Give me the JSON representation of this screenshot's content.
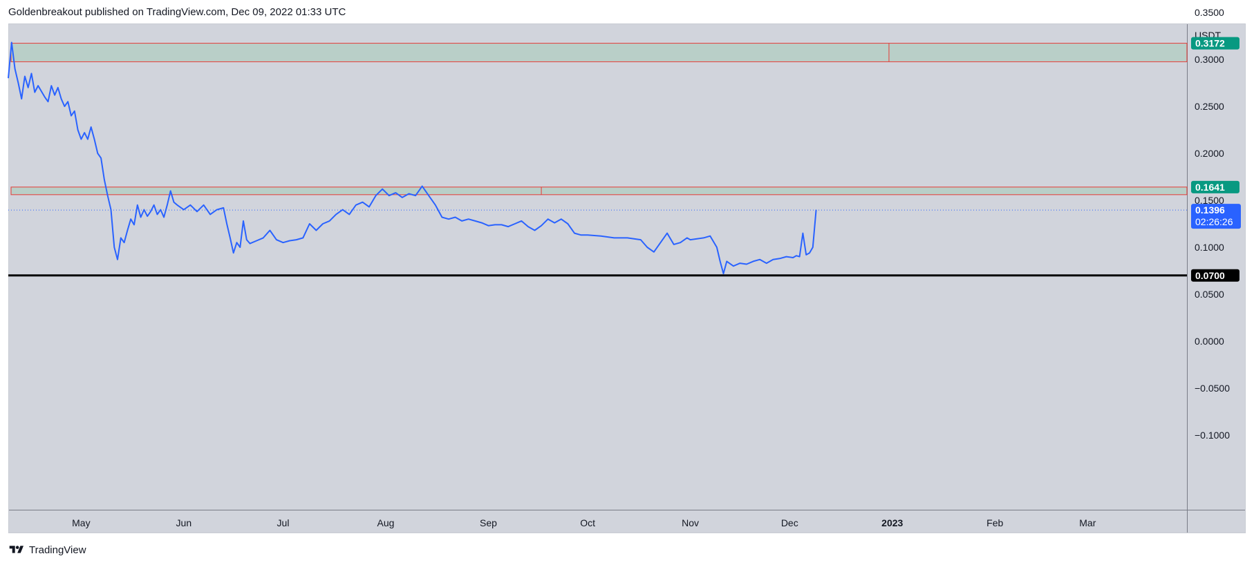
{
  "header": {
    "title": "Goldenbreakout published on TradingView.com, Dec 09, 2022 01:33 UTC"
  },
  "footer": {
    "brand": "TradingView",
    "logo_icon": "tradingview-logo-icon"
  },
  "colors": {
    "plot_bg": "#d1d4dc",
    "line": "#2962ff",
    "zone_fill": "#b9cfc8",
    "zone_border": "#e53935",
    "support_line": "#000000",
    "badge_green": "#089981",
    "badge_blue": "#2962ff",
    "badge_black": "#000000"
  },
  "chart_data": {
    "type": "line",
    "price_axis": {
      "unit": "USDT",
      "ticks": [
        0.35,
        0.3,
        0.25,
        0.2,
        0.15,
        0.1,
        0.05,
        0.0,
        -0.05,
        -0.1
      ],
      "tick_labels": [
        "0.3500",
        "0.3000",
        "0.2500",
        "0.2000",
        "0.1500",
        "0.1000",
        "0.0500",
        "0.0000",
        "−0.0500",
        "−0.1000"
      ],
      "range": [
        -0.14,
        0.37
      ]
    },
    "time_axis": {
      "range": [
        "2022-04-09",
        "2023-03-31"
      ],
      "labels": [
        {
          "date": "2022-05-01",
          "text": "May",
          "bold": false
        },
        {
          "date": "2022-06-01",
          "text": "Jun",
          "bold": false
        },
        {
          "date": "2022-07-01",
          "text": "Jul",
          "bold": false
        },
        {
          "date": "2022-08-01",
          "text": "Aug",
          "bold": false
        },
        {
          "date": "2022-09-01",
          "text": "Sep",
          "bold": false
        },
        {
          "date": "2022-10-01",
          "text": "Oct",
          "bold": false
        },
        {
          "date": "2022-11-01",
          "text": "Nov",
          "bold": false
        },
        {
          "date": "2022-12-01",
          "text": "Dec",
          "bold": false
        },
        {
          "date": "2023-01-01",
          "text": "2023",
          "bold": true
        },
        {
          "date": "2023-02-01",
          "text": "Feb",
          "bold": false
        },
        {
          "date": "2023-03-01",
          "text": "Mar",
          "bold": false
        }
      ]
    },
    "series": [
      {
        "points": [
          [
            "2022-04-09",
            0.28
          ],
          [
            "2022-04-10",
            0.318
          ],
          [
            "2022-04-11",
            0.29
          ],
          [
            "2022-04-12",
            0.275
          ],
          [
            "2022-04-13",
            0.258
          ],
          [
            "2022-04-14",
            0.282
          ],
          [
            "2022-04-15",
            0.27
          ],
          [
            "2022-04-16",
            0.285
          ],
          [
            "2022-04-17",
            0.265
          ],
          [
            "2022-04-18",
            0.272
          ],
          [
            "2022-04-20",
            0.26
          ],
          [
            "2022-04-21",
            0.255
          ],
          [
            "2022-04-22",
            0.272
          ],
          [
            "2022-04-23",
            0.262
          ],
          [
            "2022-04-24",
            0.27
          ],
          [
            "2022-04-25",
            0.258
          ],
          [
            "2022-04-26",
            0.25
          ],
          [
            "2022-04-27",
            0.255
          ],
          [
            "2022-04-28",
            0.24
          ],
          [
            "2022-04-29",
            0.245
          ],
          [
            "2022-04-30",
            0.225
          ],
          [
            "2022-05-01",
            0.215
          ],
          [
            "2022-05-02",
            0.222
          ],
          [
            "2022-05-03",
            0.215
          ],
          [
            "2022-05-04",
            0.228
          ],
          [
            "2022-05-05",
            0.215
          ],
          [
            "2022-05-06",
            0.2
          ],
          [
            "2022-05-07",
            0.195
          ],
          [
            "2022-05-08",
            0.172
          ],
          [
            "2022-05-09",
            0.155
          ],
          [
            "2022-05-10",
            0.14
          ],
          [
            "2022-05-11",
            0.1
          ],
          [
            "2022-05-12",
            0.087
          ],
          [
            "2022-05-13",
            0.11
          ],
          [
            "2022-05-14",
            0.105
          ],
          [
            "2022-05-15",
            0.118
          ],
          [
            "2022-05-16",
            0.13
          ],
          [
            "2022-05-17",
            0.124
          ],
          [
            "2022-05-18",
            0.145
          ],
          [
            "2022-05-19",
            0.132
          ],
          [
            "2022-05-20",
            0.14
          ],
          [
            "2022-05-21",
            0.133
          ],
          [
            "2022-05-22",
            0.138
          ],
          [
            "2022-05-23",
            0.145
          ],
          [
            "2022-05-24",
            0.135
          ],
          [
            "2022-05-25",
            0.14
          ],
          [
            "2022-05-26",
            0.132
          ],
          [
            "2022-05-27",
            0.145
          ],
          [
            "2022-05-28",
            0.16
          ],
          [
            "2022-05-29",
            0.148
          ],
          [
            "2022-05-30",
            0.145
          ],
          [
            "2022-06-01",
            0.14
          ],
          [
            "2022-06-03",
            0.145
          ],
          [
            "2022-06-05",
            0.138
          ],
          [
            "2022-06-07",
            0.145
          ],
          [
            "2022-06-09",
            0.135
          ],
          [
            "2022-06-11",
            0.14
          ],
          [
            "2022-06-13",
            0.142
          ],
          [
            "2022-06-14",
            0.125
          ],
          [
            "2022-06-15",
            0.11
          ],
          [
            "2022-06-16",
            0.094
          ],
          [
            "2022-06-17",
            0.105
          ],
          [
            "2022-06-18",
            0.1
          ],
          [
            "2022-06-19",
            0.128
          ],
          [
            "2022-06-20",
            0.108
          ],
          [
            "2022-06-21",
            0.104
          ],
          [
            "2022-06-23",
            0.107
          ],
          [
            "2022-06-25",
            0.11
          ],
          [
            "2022-06-27",
            0.118
          ],
          [
            "2022-06-29",
            0.108
          ],
          [
            "2022-07-01",
            0.105
          ],
          [
            "2022-07-03",
            0.107
          ],
          [
            "2022-07-05",
            0.108
          ],
          [
            "2022-07-07",
            0.11
          ],
          [
            "2022-07-09",
            0.125
          ],
          [
            "2022-07-11",
            0.118
          ],
          [
            "2022-07-13",
            0.125
          ],
          [
            "2022-07-15",
            0.128
          ],
          [
            "2022-07-17",
            0.135
          ],
          [
            "2022-07-19",
            0.14
          ],
          [
            "2022-07-21",
            0.135
          ],
          [
            "2022-07-23",
            0.145
          ],
          [
            "2022-07-25",
            0.148
          ],
          [
            "2022-07-27",
            0.143
          ],
          [
            "2022-07-29",
            0.155
          ],
          [
            "2022-07-31",
            0.162
          ],
          [
            "2022-08-02",
            0.155
          ],
          [
            "2022-08-04",
            0.158
          ],
          [
            "2022-08-06",
            0.153
          ],
          [
            "2022-08-08",
            0.157
          ],
          [
            "2022-08-10",
            0.155
          ],
          [
            "2022-08-12",
            0.165
          ],
          [
            "2022-08-14",
            0.155
          ],
          [
            "2022-08-16",
            0.145
          ],
          [
            "2022-08-18",
            0.132
          ],
          [
            "2022-08-20",
            0.13
          ],
          [
            "2022-08-22",
            0.132
          ],
          [
            "2022-08-24",
            0.128
          ],
          [
            "2022-08-26",
            0.13
          ],
          [
            "2022-08-28",
            0.128
          ],
          [
            "2022-08-30",
            0.126
          ],
          [
            "2022-09-01",
            0.123
          ],
          [
            "2022-09-03",
            0.124
          ],
          [
            "2022-09-05",
            0.124
          ],
          [
            "2022-09-07",
            0.122
          ],
          [
            "2022-09-09",
            0.125
          ],
          [
            "2022-09-11",
            0.128
          ],
          [
            "2022-09-13",
            0.122
          ],
          [
            "2022-09-15",
            0.118
          ],
          [
            "2022-09-17",
            0.123
          ],
          [
            "2022-09-19",
            0.13
          ],
          [
            "2022-09-21",
            0.126
          ],
          [
            "2022-09-23",
            0.13
          ],
          [
            "2022-09-25",
            0.125
          ],
          [
            "2022-09-27",
            0.115
          ],
          [
            "2022-09-29",
            0.113
          ],
          [
            "2022-10-01",
            0.113
          ],
          [
            "2022-10-05",
            0.112
          ],
          [
            "2022-10-09",
            0.11
          ],
          [
            "2022-10-13",
            0.11
          ],
          [
            "2022-10-17",
            0.108
          ],
          [
            "2022-10-19",
            0.1
          ],
          [
            "2022-10-21",
            0.095
          ],
          [
            "2022-10-23",
            0.105
          ],
          [
            "2022-10-25",
            0.115
          ],
          [
            "2022-10-27",
            0.103
          ],
          [
            "2022-10-29",
            0.105
          ],
          [
            "2022-10-31",
            0.11
          ],
          [
            "2022-11-01",
            0.108
          ],
          [
            "2022-11-03",
            0.109
          ],
          [
            "2022-11-05",
            0.11
          ],
          [
            "2022-11-07",
            0.112
          ],
          [
            "2022-11-09",
            0.1
          ],
          [
            "2022-11-10",
            0.085
          ],
          [
            "2022-11-11",
            0.072
          ],
          [
            "2022-11-12",
            0.085
          ],
          [
            "2022-11-14",
            0.08
          ],
          [
            "2022-11-16",
            0.083
          ],
          [
            "2022-11-18",
            0.082
          ],
          [
            "2022-11-20",
            0.085
          ],
          [
            "2022-11-22",
            0.087
          ],
          [
            "2022-11-24",
            0.083
          ],
          [
            "2022-11-26",
            0.087
          ],
          [
            "2022-11-28",
            0.088
          ],
          [
            "2022-11-30",
            0.09
          ],
          [
            "2022-12-02",
            0.089
          ],
          [
            "2022-12-03",
            0.091
          ],
          [
            "2022-12-04",
            0.09
          ],
          [
            "2022-12-05",
            0.115
          ],
          [
            "2022-12-06",
            0.092
          ],
          [
            "2022-12-07",
            0.094
          ],
          [
            "2022-12-08",
            0.1
          ],
          [
            "2022-12-09",
            0.14
          ]
        ]
      }
    ],
    "zones": [
      {
        "top": 0.3172,
        "bottom": 0.2975,
        "start": "2022-04-09",
        "divider": "2022-12-31"
      },
      {
        "top": 0.1641,
        "bottom": 0.156,
        "start": "2022-04-09",
        "divider": "2022-09-17"
      }
    ],
    "support_level": 0.07,
    "last_price_line": 0.1396,
    "price_labels": [
      {
        "value": 0.3172,
        "text": "0.3172",
        "color": "#089981"
      },
      {
        "value": 0.1641,
        "text": "0.1641",
        "color": "#089981"
      },
      {
        "value": 0.07,
        "text": "0.0700",
        "color": "#000000"
      }
    ],
    "last_price_label": {
      "value": 0.1396,
      "text": "0.1396",
      "countdown": "02:26:26",
      "color": "#2962ff"
    }
  }
}
